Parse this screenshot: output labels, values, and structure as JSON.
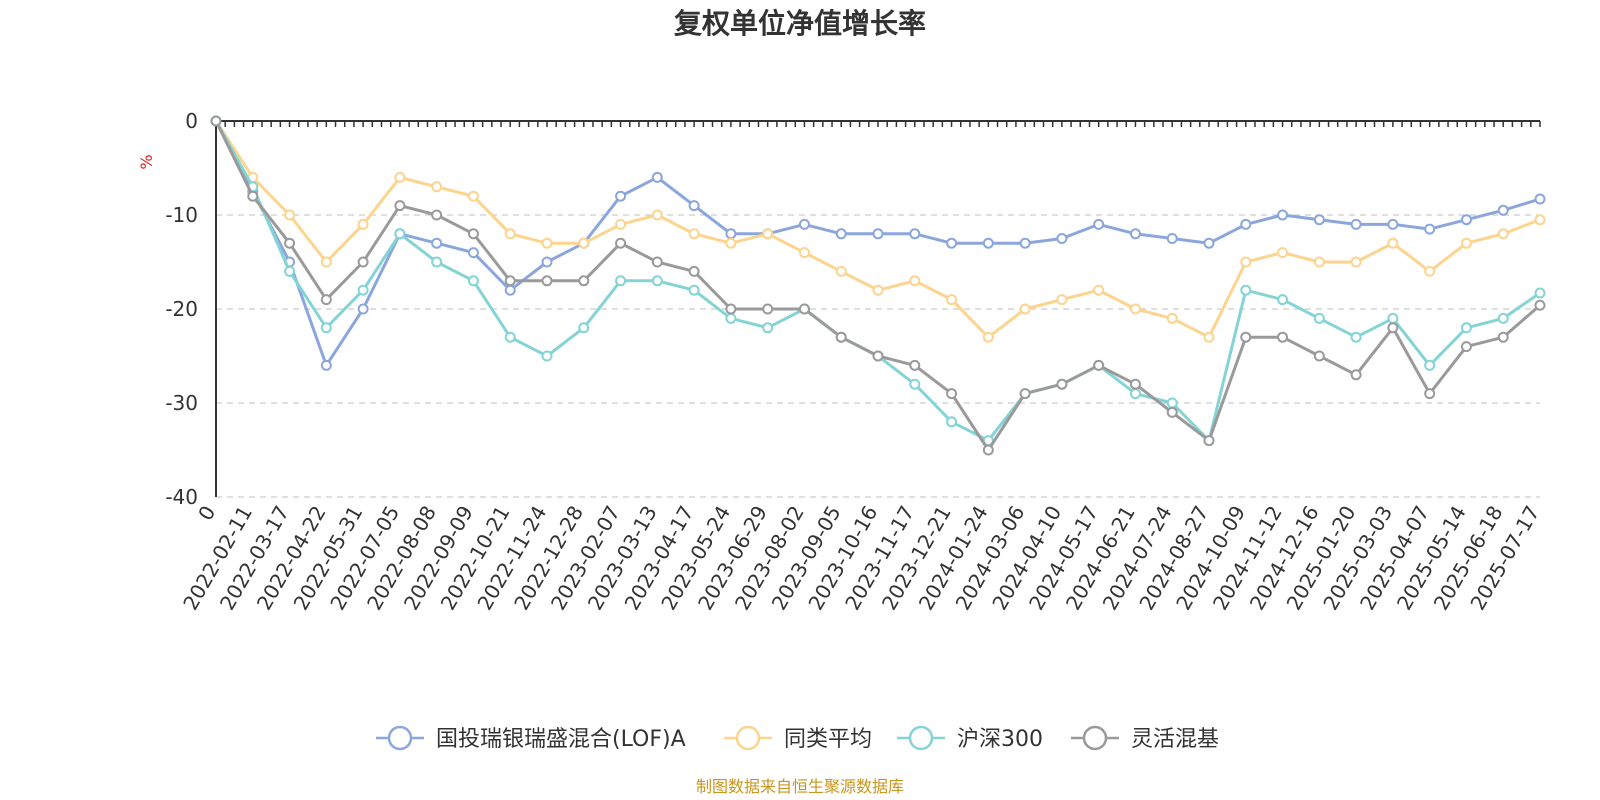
{
  "chart_data": {
    "type": "line",
    "title": "复权单位净值增长率",
    "ylabel": "%",
    "ylim": [
      -40,
      0
    ],
    "yticks": [
      0,
      -10,
      -20,
      -30,
      -40
    ],
    "grid": true,
    "legend_position": "bottom",
    "source": "制图数据来自恒生聚源数据库",
    "x": [
      "0",
      "2022-02-11",
      "2022-03-17",
      "2022-04-22",
      "2022-05-31",
      "2022-07-05",
      "2022-08-08",
      "2022-09-09",
      "2022-10-21",
      "2022-11-24",
      "2022-12-28",
      "2023-02-07",
      "2023-03-13",
      "2023-04-17",
      "2023-05-24",
      "2023-06-29",
      "2023-08-02",
      "2023-09-05",
      "2023-10-16",
      "2023-11-17",
      "2023-12-21",
      "2024-01-24",
      "2024-03-06",
      "2024-04-10",
      "2024-05-17",
      "2024-06-21",
      "2024-07-24",
      "2024-08-27",
      "2024-10-09",
      "2024-11-12",
      "2024-12-16",
      "2025-01-20",
      "2025-03-03",
      "2025-04-07",
      "2025-05-14",
      "2025-06-18",
      "2025-07-17"
    ],
    "series": [
      {
        "name": "国投瑞银瑞盛混合(LOF)A",
        "color": "#8ba6dc",
        "values": [
          0,
          -7.5,
          -15,
          -26,
          -20,
          -12,
          -13,
          -14,
          -18,
          -15,
          -13,
          -8,
          -6,
          -9,
          -12,
          -12,
          -11,
          -12,
          -12,
          -12,
          -13,
          -13,
          -13,
          -12.5,
          -11,
          -12,
          -12.5,
          -13,
          -11,
          -10,
          -10.5,
          -11,
          -11,
          -11.5,
          -10.5,
          -9.5,
          -8.3
        ]
      },
      {
        "name": "同类平均",
        "color": "#fcd48e",
        "values": [
          0,
          -6,
          -10,
          -15,
          -11,
          -6,
          -7,
          -8,
          -12,
          -13,
          -13,
          -11,
          -10,
          -12,
          -13,
          -12,
          -14,
          -16,
          -18,
          -17,
          -19,
          -23,
          -20,
          -19,
          -18,
          -20,
          -21,
          -23,
          -15,
          -14,
          -15,
          -15,
          -13,
          -16,
          -13,
          -12,
          -10.5
        ]
      },
      {
        "name": "沪深300",
        "color": "#84d4d6",
        "values": [
          0,
          -7,
          -16,
          -22,
          -18,
          -12,
          -15,
          -17,
          -23,
          -25,
          -22,
          -17,
          -17,
          -18,
          -21,
          -22,
          -20,
          -23,
          -25,
          -28,
          -32,
          -34,
          -29,
          -28,
          -26,
          -29,
          -30,
          -34,
          -18,
          -19,
          -21,
          -23,
          -21,
          -26,
          -22,
          -21,
          -18.3
        ]
      },
      {
        "name": "灵活混基",
        "color": "#9a9a9a",
        "values": [
          0,
          -8,
          -13,
          -19,
          -15,
          -9,
          -10,
          -12,
          -17,
          -17,
          -17,
          -13,
          -15,
          -16,
          -20,
          -20,
          -20,
          -23,
          -25,
          -26,
          -29,
          -35,
          -29,
          -28,
          -26,
          -28,
          -31,
          -34,
          -23,
          -23,
          -25,
          -27,
          -22,
          -29,
          -24,
          -23,
          -19.6
        ]
      }
    ]
  }
}
